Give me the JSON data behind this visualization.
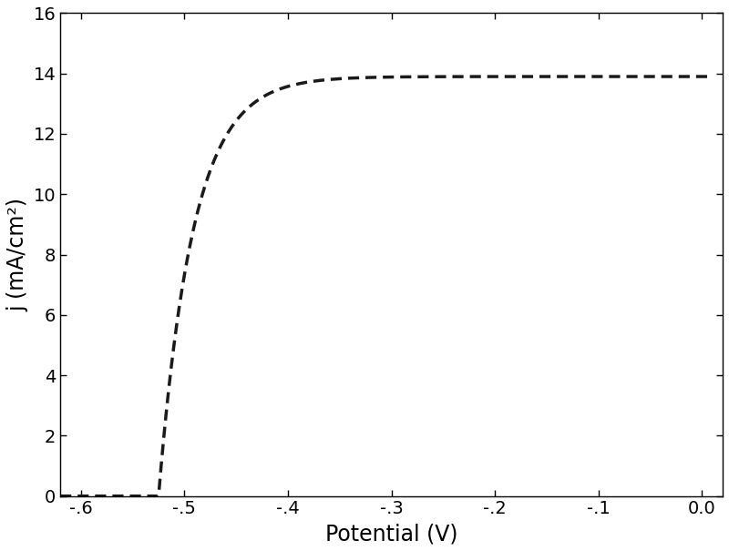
{
  "xlabel": "Potential (V)",
  "ylabel": "j (mA/cm²)",
  "xlim": [
    -0.62,
    0.02
  ],
  "ylim": [
    0,
    16
  ],
  "xticks": [
    -0.6,
    -0.5,
    -0.4,
    -0.3,
    -0.2,
    -0.1,
    0.0
  ],
  "yticks": [
    0,
    2,
    4,
    6,
    8,
    10,
    12,
    14,
    16
  ],
  "xtick_labels": [
    "-.6",
    "-.5",
    "-.4",
    "-.3",
    "-.2",
    "-.1",
    "0.0"
  ],
  "ytick_labels": [
    "0",
    "2",
    "4",
    "6",
    "8",
    "10",
    "12",
    "14",
    "16"
  ],
  "curve_color": "#1a1a1a",
  "line_width": 2.5,
  "onset_potential": -0.525,
  "j_sat": 13.9,
  "curve_steepness": 30.0,
  "background_color": "#ffffff",
  "xlabel_fontsize": 17,
  "ylabel_fontsize": 17,
  "tick_fontsize": 14,
  "dash_on": 3.5,
  "dash_off": 2.0
}
